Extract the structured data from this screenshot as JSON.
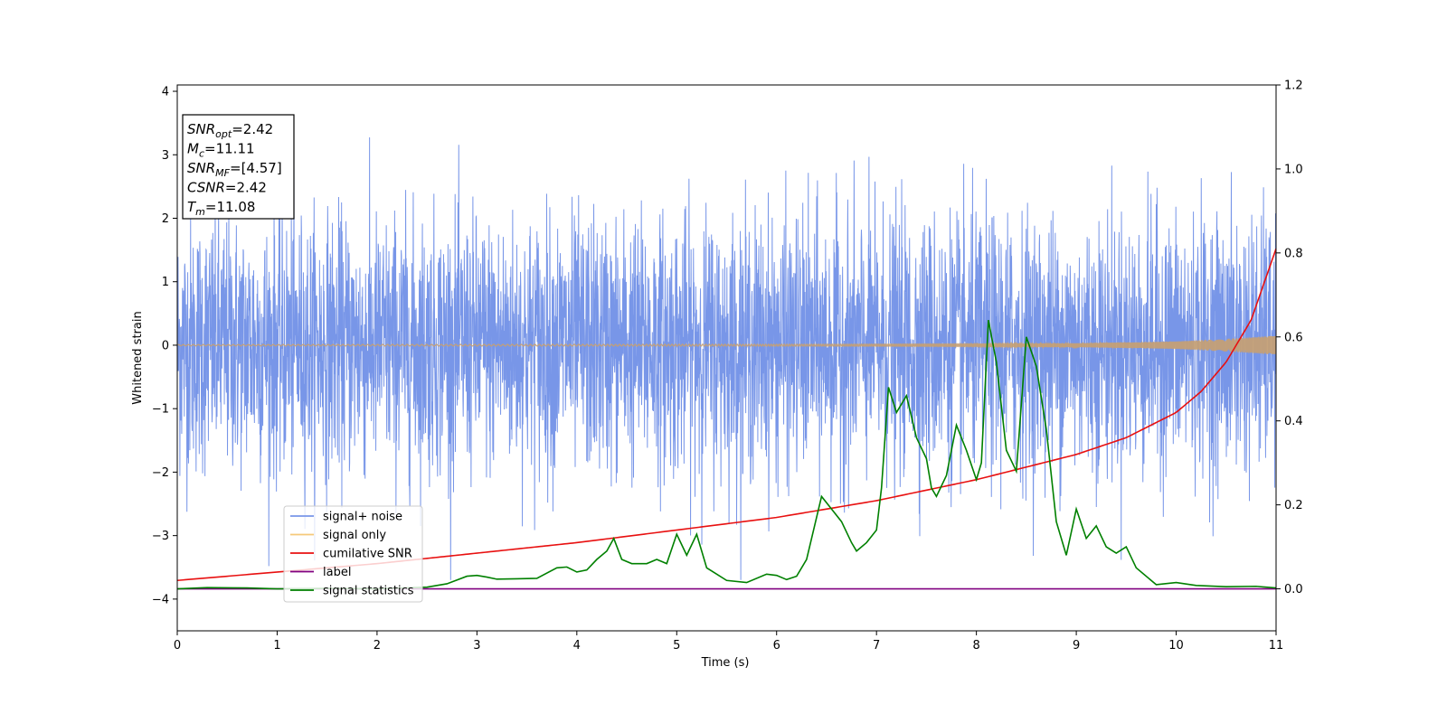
{
  "chart_data": {
    "type": "line",
    "xlabel": "Time (s)",
    "ylabel": "Whitened strain",
    "xlim": [
      0,
      11
    ],
    "ylim_left": [
      -4.5,
      4.1
    ],
    "ylim_right": [
      -0.1,
      1.2
    ],
    "x_ticks": [
      "0",
      "1",
      "2",
      "3",
      "4",
      "5",
      "6",
      "7",
      "8",
      "9",
      "10",
      "11"
    ],
    "y_left_ticks": [
      "4",
      "3",
      "2",
      "1",
      "0",
      "−1",
      "−2",
      "−3",
      "−4"
    ],
    "y_right_ticks": [
      "1.2",
      "1.0",
      "0.8",
      "0.6",
      "0.4",
      "0.2",
      "0.0"
    ],
    "grid": false,
    "legend_placement": "lower-left",
    "info_box": [
      {
        "base": "SNR",
        "sub": "opt",
        "rest": "=2.42"
      },
      {
        "base": "M",
        "sub": "c",
        "rest": "=11.11"
      },
      {
        "base": "SNR",
        "sub": "MF",
        "rest": "=[4.57]"
      },
      {
        "base": "CSNR",
        "sub": "",
        "rest": "=2.42"
      },
      {
        "base": "T",
        "sub": "m",
        "rest": "=11.08"
      }
    ],
    "series": [
      {
        "name": "signal+ noise",
        "color": "#7896e8",
        "axis": "left",
        "style": "noise",
        "amplitude_std": 1.0,
        "max_abs": 3.7
      },
      {
        "name": "signal only",
        "color": "#f5c97a",
        "axis": "left",
        "style": "chirp",
        "envelope_x": [
          0,
          6,
          8,
          9,
          10,
          10.5,
          11
        ],
        "envelope_y": [
          0.01,
          0.015,
          0.02,
          0.03,
          0.06,
          0.1,
          0.15
        ]
      },
      {
        "name": "cumilative SNR",
        "color": "#e81010",
        "axis": "right",
        "x": [
          0,
          1,
          2,
          3,
          4,
          5,
          6,
          7,
          7.5,
          8,
          8.5,
          9,
          9.5,
          10,
          10.25,
          10.5,
          10.75,
          11
        ],
        "y": [
          0.02,
          0.04,
          0.06,
          0.085,
          0.11,
          0.14,
          0.17,
          0.21,
          0.235,
          0.26,
          0.29,
          0.32,
          0.36,
          0.42,
          0.47,
          0.54,
          0.64,
          0.81
        ]
      },
      {
        "name": "label",
        "color": "#800080",
        "axis": "right",
        "x": [
          0,
          11
        ],
        "y": [
          0.0,
          0.0
        ]
      },
      {
        "name": "signal statistics",
        "color": "#008000",
        "axis": "right",
        "x": [
          0,
          0.3,
          0.7,
          1.0,
          1.5,
          2.0,
          2.5,
          2.7,
          2.9,
          3.0,
          3.1,
          3.2,
          3.4,
          3.6,
          3.8,
          3.9,
          4.0,
          4.1,
          4.2,
          4.3,
          4.37,
          4.45,
          4.55,
          4.7,
          4.8,
          4.9,
          5.0,
          5.1,
          5.2,
          5.3,
          5.5,
          5.7,
          5.9,
          6.0,
          6.1,
          6.2,
          6.3,
          6.45,
          6.55,
          6.65,
          6.75,
          6.8,
          6.9,
          7.0,
          7.05,
          7.12,
          7.2,
          7.3,
          7.4,
          7.5,
          7.55,
          7.6,
          7.7,
          7.8,
          7.9,
          8.0,
          8.05,
          8.12,
          8.2,
          8.3,
          8.4,
          8.5,
          8.6,
          8.7,
          8.8,
          8.9,
          9.0,
          9.1,
          9.2,
          9.3,
          9.4,
          9.5,
          9.6,
          9.8,
          10.0,
          10.2,
          10.5,
          10.8,
          11.0
        ],
        "y": [
          0.0,
          0.003,
          0.002,
          0.0,
          0.001,
          0.0,
          0.004,
          0.012,
          0.03,
          0.032,
          0.028,
          0.023,
          0.024,
          0.025,
          0.05,
          0.052,
          0.04,
          0.045,
          0.07,
          0.09,
          0.12,
          0.07,
          0.06,
          0.06,
          0.07,
          0.06,
          0.13,
          0.08,
          0.13,
          0.05,
          0.02,
          0.015,
          0.035,
          0.032,
          0.022,
          0.03,
          0.07,
          0.22,
          0.19,
          0.16,
          0.11,
          0.09,
          0.11,
          0.14,
          0.24,
          0.48,
          0.42,
          0.46,
          0.36,
          0.31,
          0.24,
          0.22,
          0.27,
          0.39,
          0.33,
          0.26,
          0.3,
          0.64,
          0.54,
          0.33,
          0.28,
          0.6,
          0.53,
          0.38,
          0.16,
          0.08,
          0.19,
          0.12,
          0.15,
          0.1,
          0.085,
          0.1,
          0.05,
          0.01,
          0.015,
          0.008,
          0.005,
          0.006,
          0.002
        ]
      }
    ]
  }
}
